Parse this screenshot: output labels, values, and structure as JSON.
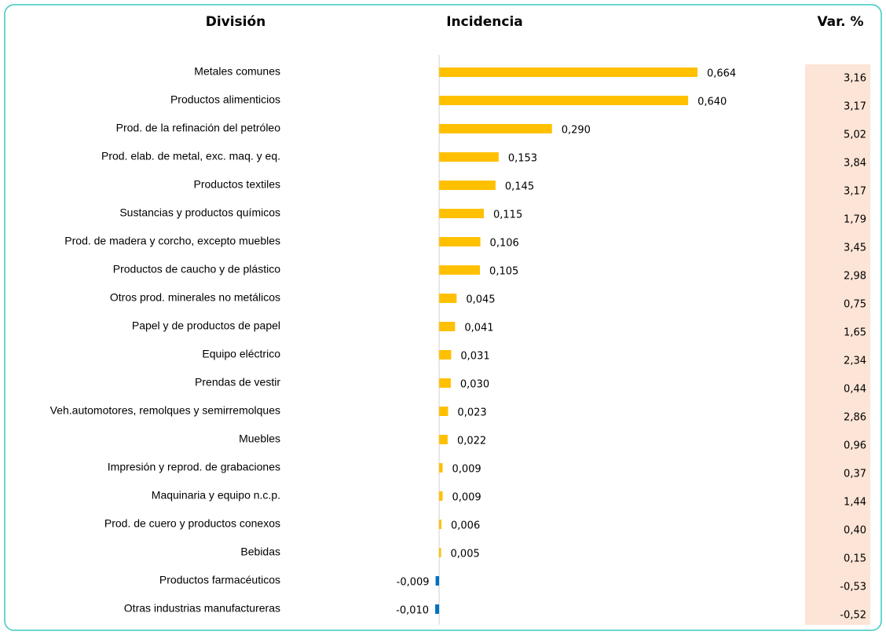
{
  "chart_data": {
    "type": "bar",
    "orientation": "horizontal",
    "headers": [
      "División",
      "Incidencia",
      "Var. %"
    ],
    "categories": [
      "Metales comunes",
      "Productos alimenticios",
      "Prod. de la refinación del petróleo",
      "Prod. elab. de metal, exc. maq. y eq.",
      "Productos textiles",
      "Sustancias y productos químicos",
      "Prod. de madera y corcho, excepto muebles",
      "Productos de caucho y de plástico",
      "Otros prod. minerales no metálicos",
      "Papel y de productos de papel",
      "Equipo eléctrico",
      "Prendas de vestir",
      "Veh.automotores, remolques y semirremolques",
      "Muebles",
      "Impresión y reprod. de grabaciones",
      "Maquinaria y equipo n.c.p.",
      "Prod. de cuero y productos conexos",
      "Bebidas",
      "Productos farmacéuticos",
      "Otras industrias manufactureras"
    ],
    "values": [
      0.664,
      0.64,
      0.29,
      0.153,
      0.145,
      0.115,
      0.106,
      0.105,
      0.045,
      0.041,
      0.031,
      0.03,
      0.023,
      0.022,
      0.009,
      0.009,
      0.006,
      0.005,
      -0.009,
      -0.01
    ],
    "value_labels": [
      "0,664",
      "0,640",
      "0,290",
      "0,153",
      "0,145",
      "0,115",
      "0,106",
      "0,105",
      "0,045",
      "0,041",
      "0,031",
      "0,030",
      "0,023",
      "0,022",
      "0,009",
      "0,009",
      "0,006",
      "0,005",
      "-0,009",
      "-0,010"
    ],
    "var_pct": [
      "3,16",
      "3,17",
      "5,02",
      "3,84",
      "3,17",
      "1,79",
      "3,45",
      "2,98",
      "0,75",
      "1,65",
      "2,34",
      "0,44",
      "2,86",
      "0,96",
      "0,37",
      "1,44",
      "0,40",
      "0,15",
      "-0,53",
      "-0,52"
    ],
    "positive_color": "#ffc000",
    "negative_color": "#0070c0",
    "xlim": [
      -0.1,
      0.75
    ]
  }
}
